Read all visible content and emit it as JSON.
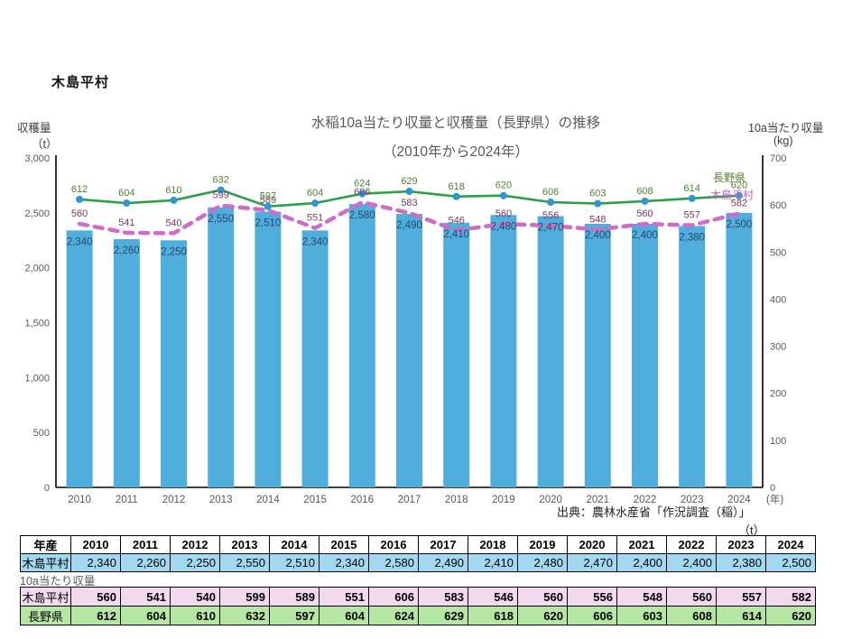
{
  "page": {
    "heading": "木島平村"
  },
  "chart": {
    "title_line1": "水稲10a当たり収量と収穫量（長野県）の推移",
    "title_line2": "（2010年から2024年）",
    "left_axis_label": "収穫量",
    "left_axis_unit": "（t）",
    "right_axis_label": "10a当たり収量",
    "right_axis_unit": "(kg)",
    "x_axis_unit": "(年)",
    "source": "出典：農林水産省「作況調査（稲）」",
    "colors": {
      "bar": "#4FAEDC",
      "line_green": "#2BA146",
      "marker_blue": "#2E96D2",
      "line_pink": "#CF6BC8",
      "label_green": "#538135",
      "label_pink": "#7A3B60",
      "label_bar": "#27496B",
      "axis_line": "#000000",
      "tick_text": "#595959",
      "series_label_green": "#538135",
      "series_label_pink": "#C660BE"
    }
  },
  "chart_data": {
    "type": "combo",
    "title": "水稲10a当たり収量と収穫量（長野県）の推移（2010年から2024年）",
    "categories": [
      "2010",
      "2011",
      "2012",
      "2013",
      "2014",
      "2015",
      "2016",
      "2017",
      "2018",
      "2019",
      "2020",
      "2021",
      "2022",
      "2023",
      "2024"
    ],
    "series": [
      {
        "name": "木島平村",
        "type": "bar",
        "axis": "left",
        "unit": "t",
        "values": [
          2340,
          2260,
          2250,
          2550,
          2510,
          2340,
          2580,
          2490,
          2410,
          2480,
          2470,
          2400,
          2400,
          2380,
          2500
        ]
      },
      {
        "name": "木島平村",
        "type": "line-dashed",
        "axis": "right",
        "unit": "kg",
        "values": [
          560,
          541,
          540,
          599,
          589,
          551,
          606,
          583,
          546,
          560,
          556,
          548,
          560,
          557,
          582
        ]
      },
      {
        "name": "長野県",
        "type": "line",
        "axis": "right",
        "unit": "kg",
        "values": [
          612,
          604,
          610,
          632,
          597,
          604,
          624,
          629,
          618,
          620,
          606,
          603,
          608,
          614,
          620
        ]
      }
    ],
    "left_axis": {
      "label": "収穫量（t）",
      "min": 0,
      "max": 3000,
      "step": 500
    },
    "right_axis": {
      "label": "10a当たり収量(kg)",
      "min": 0,
      "max": 700,
      "step": 100
    },
    "grid": false,
    "legend": "inline-right"
  },
  "tables": {
    "unit_label": "（t）",
    "between_label": "10a当たり収量",
    "header_first_cell": "年産",
    "row_labels": {
      "village": "木島平村",
      "prefecture": "長野県"
    }
  }
}
